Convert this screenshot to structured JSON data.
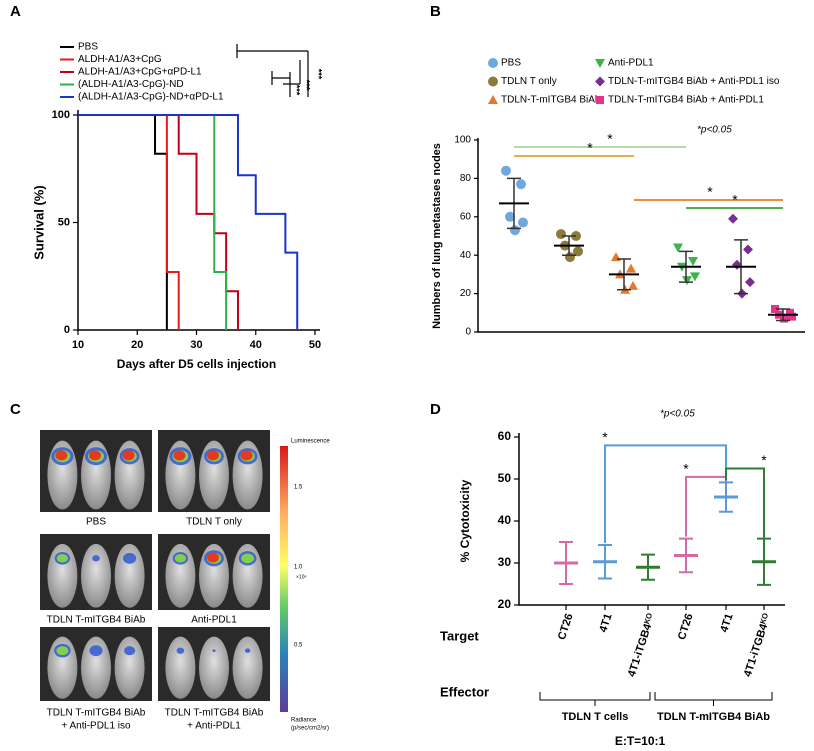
{
  "chart_data": [
    {
      "panel": "A",
      "type": "step",
      "xlabel": "Days after D5 cells injection",
      "ylabel": "Survival (%)",
      "xlim": [
        10,
        50
      ],
      "xticks": [
        10,
        20,
        30,
        40,
        50
      ],
      "ylim": [
        0,
        100
      ],
      "yticks": [
        0,
        50,
        100
      ],
      "series": [
        {
          "name": "PBS",
          "color": "#000000",
          "x": [
            10,
            23,
            25
          ],
          "values": [
            100,
            82,
            0
          ]
        },
        {
          "name": "ALDH-A1/A3+CpG",
          "color": "#e41a1c",
          "x": [
            10,
            25,
            27
          ],
          "values": [
            100,
            27,
            0
          ]
        },
        {
          "name": "ALDH-A1/A3+CpG+αPD-L1",
          "color": "#c0001a",
          "x": [
            10,
            27,
            30,
            33,
            35,
            37
          ],
          "values": [
            100,
            82,
            54,
            45,
            18,
            0
          ]
        },
        {
          "name": "(ALDH-A1/A3-CpG)-ND",
          "color": "#2db34a",
          "x": [
            10,
            33,
            35
          ],
          "values": [
            100,
            27,
            0
          ]
        },
        {
          "name": "(ALDH-A1/A3-CpG)-ND+αPD-L1",
          "color": "#1a36c8",
          "x": [
            10,
            37,
            40,
            45,
            47
          ],
          "values": [
            100,
            72,
            54,
            36,
            0
          ]
        }
      ],
      "annotations": [
        "***",
        "***",
        "***"
      ]
    },
    {
      "panel": "B",
      "type": "dot",
      "ylabel": "Numbers of lung metastases nodes",
      "ylim": [
        0,
        100
      ],
      "yticks": [
        0,
        20,
        40,
        60,
        80,
        100
      ],
      "note": "*p<0.05",
      "annotations": [
        "*",
        "*",
        "*",
        "*"
      ],
      "series": [
        {
          "name": "PBS",
          "color": "#6fa8dc",
          "marker": "circle",
          "values": [
            84,
            77,
            60,
            57,
            53
          ],
          "mean": 67,
          "sd": 13
        },
        {
          "name": "TDLN T only",
          "color": "#8c7a3a",
          "marker": "circle",
          "values": [
            51,
            50,
            45,
            42,
            39
          ],
          "mean": 45,
          "sd": 5
        },
        {
          "name": "TDLN-T-mITGB4 BiAb",
          "color": "#e8772e",
          "marker": "triangle-up",
          "values": [
            39,
            33,
            30,
            24,
            22
          ],
          "mean": 30,
          "sd": 8
        },
        {
          "name": "Anti-PDL1",
          "color": "#3cb44b",
          "marker": "triangle-down",
          "values": [
            44,
            37,
            34,
            29,
            27
          ],
          "mean": 34,
          "sd": 8
        },
        {
          "name": "TDLN-T-mITGB4 BiAb + Anti-PDL1 iso",
          "color": "#7a2f8f",
          "marker": "diamond",
          "values": [
            59,
            43,
            35,
            26,
            20
          ],
          "mean": 34,
          "sd": 14
        },
        {
          "name": "TDLN-T-mITGB4 BiAb + Anti-PDL1",
          "color": "#e6338a",
          "marker": "square",
          "values": [
            12,
            10,
            9,
            8,
            7
          ],
          "mean": 9,
          "sd": 3
        }
      ]
    },
    {
      "panel": "D",
      "type": "errorbar",
      "ylabel": "% Cytotoxicity",
      "ylim": [
        20,
        60
      ],
      "yticks": [
        20,
        30,
        40,
        50,
        60
      ],
      "categories": [
        "CT26",
        "4T1",
        "4T1-iTGB4ᴷᴼ",
        "CT26",
        "4T1",
        "4T1-iTGB4ᴷᴼ"
      ],
      "values": [
        30,
        30.3,
        29,
        31.8,
        45.7,
        30.3
      ],
      "errors": [
        5,
        4,
        3,
        4,
        3.5,
        5.5
      ],
      "colors": [
        "#d36aa9",
        "#5b9bd5",
        "#2e7d32",
        "#d36aa9",
        "#5b9bd5",
        "#2e7d32"
      ],
      "row_labels": [
        "Target",
        "Effector"
      ],
      "groups": [
        "TDLN T cells",
        "TDLN T-mITGB4 BiAb"
      ],
      "footer": "E:T=10:1",
      "note": "*p<0.05",
      "annotations": [
        "*",
        "*",
        "*"
      ]
    }
  ],
  "panel_c": {
    "panel": "C",
    "images": [
      {
        "lines": [
          "PBS"
        ]
      },
      {
        "lines": [
          "TDLN T only"
        ]
      },
      {
        "lines": [
          "TDLN T-mITGB4 BiAb"
        ]
      },
      {
        "lines": [
          "Anti-PDL1"
        ]
      },
      {
        "lines": [
          "TDLN T-mITGB4 BiAb",
          "+ Anti-PDL1 iso"
        ]
      },
      {
        "lines": [
          "TDLN T-mITGB4 BiAb",
          "+ Anti-PDL1"
        ]
      }
    ],
    "colorbar": {
      "title": "Luminescence",
      "labels": [
        "1.5",
        "1.0",
        "0.5"
      ],
      "unit": "×10⁶",
      "footer": [
        "Radiance",
        "(p/sec/cm2/sr)"
      ]
    }
  }
}
